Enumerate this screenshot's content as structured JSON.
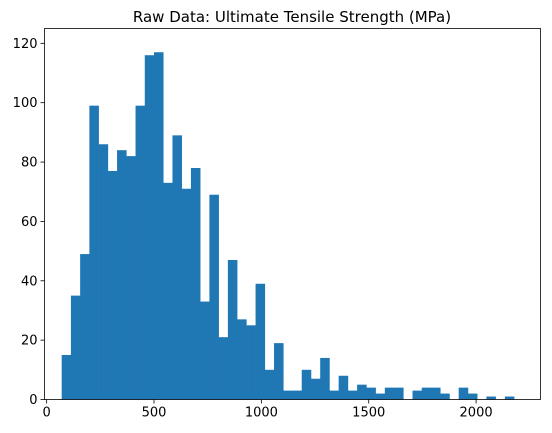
{
  "chart_data": {
    "type": "bar",
    "title": "Raw Data: Ultimate Tensile Strength (MPa)",
    "xlabel": "",
    "ylabel": "",
    "xlim": [
      -10,
      2300
    ],
    "ylim": [
      0,
      125
    ],
    "xticks": [
      0,
      500,
      1000,
      1500,
      2000
    ],
    "yticks": [
      0,
      20,
      40,
      60,
      80,
      100,
      120
    ],
    "bin_width": 43,
    "bin_start": 70,
    "values": [
      15,
      35,
      49,
      99,
      86,
      77,
      84,
      82,
      99,
      116,
      117,
      73,
      89,
      71,
      78,
      33,
      69,
      21,
      47,
      27,
      25,
      39,
      10,
      19,
      3,
      3,
      10,
      7,
      14,
      3,
      8,
      3,
      5,
      4,
      2,
      4,
      4,
      0,
      3,
      4,
      4,
      2,
      0,
      4,
      2,
      0,
      1,
      0,
      1
    ],
    "bar_color": "#1f77b4",
    "grid": false
  }
}
